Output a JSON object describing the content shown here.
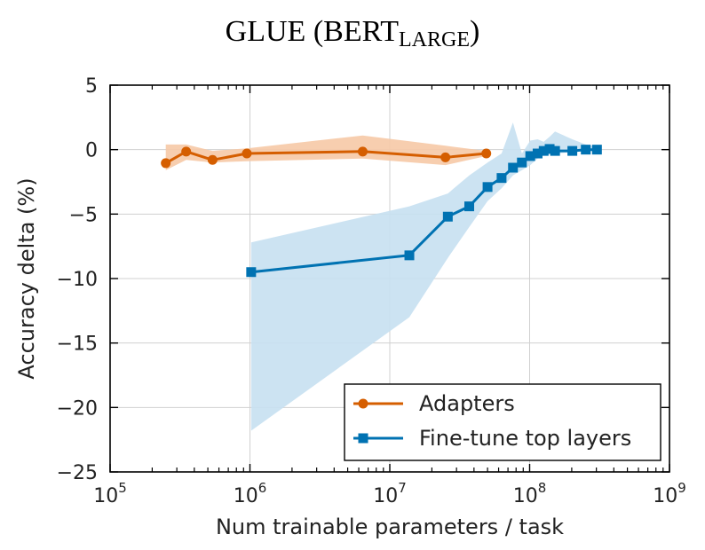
{
  "chart_data": {
    "type": "line",
    "title": "GLUE (BERT",
    "title_subscript": "LARGE",
    "title_suffix": ")",
    "xlabel": "Num trainable parameters / task",
    "ylabel": "Accuracy delta (%)",
    "xscale": "log",
    "xlim": [
      100000,
      1000000000
    ],
    "ylim": [
      -25,
      5
    ],
    "xticks": [
      {
        "value": 100000,
        "base": "10",
        "exp": "5"
      },
      {
        "value": 1000000,
        "base": "10",
        "exp": "6"
      },
      {
        "value": 10000000,
        "base": "10",
        "exp": "7"
      },
      {
        "value": 100000000,
        "base": "10",
        "exp": "8"
      },
      {
        "value": 1000000000,
        "base": "10",
        "exp": "9"
      }
    ],
    "yticks": [
      {
        "value": 5,
        "label": "5"
      },
      {
        "value": 0,
        "label": "0"
      },
      {
        "value": -5,
        "label": "−5"
      },
      {
        "value": -10,
        "label": "−10"
      },
      {
        "value": -15,
        "label": "−15"
      },
      {
        "value": -20,
        "label": "−20"
      },
      {
        "value": -25,
        "label": "−25"
      }
    ],
    "grid": true,
    "legend_position": "bottom-right",
    "series": [
      {
        "name": "Adapters",
        "color": "#d55e00",
        "band_color": "#f6c9a6",
        "marker": "circle",
        "x": [
          250000,
          350000,
          540000,
          950000,
          6400000,
          25000000,
          49000000
        ],
        "y": [
          -1.05,
          -0.15,
          -0.8,
          -0.3,
          -0.15,
          -0.6,
          -0.3
        ],
        "band_lower": [
          -1.6,
          -0.8,
          -1.0,
          -0.9,
          -0.7,
          -1.2,
          -0.5
        ],
        "band_upper": [
          0.4,
          0.4,
          -0.1,
          0.1,
          1.1,
          0.3,
          -0.1
        ]
      },
      {
        "name": "Fine-tune top layers",
        "color": "#0072b2",
        "band_color": "#c6e0f1",
        "marker": "square",
        "x": [
          1020000,
          13800000,
          26000000,
          37000000,
          50000000,
          63000000,
          76000000,
          88000000,
          101000000,
          114000000,
          126000000,
          139000000,
          152000000,
          202000000,
          252000000,
          303000000
        ],
        "y": [
          -9.5,
          -8.2,
          -5.2,
          -4.4,
          -2.9,
          -2.2,
          -1.4,
          -1.0,
          -0.5,
          -0.3,
          -0.1,
          0.05,
          -0.1,
          -0.1,
          0.0,
          0.0
        ],
        "band_lower": [
          -21.8,
          -13.0,
          -8.4,
          -6.0,
          -4.0,
          -3.0,
          -2.0,
          -1.6,
          -1.2,
          -0.7,
          -0.4,
          -0.3,
          -0.3,
          -0.2,
          -0.1,
          -0.1
        ],
        "band_upper": [
          -7.2,
          -4.4,
          -3.4,
          -2.0,
          -1.0,
          -0.3,
          2.1,
          -0.3,
          0.7,
          0.8,
          0.6,
          1.0,
          1.4,
          0.8,
          0.4,
          0.2
        ]
      }
    ]
  }
}
